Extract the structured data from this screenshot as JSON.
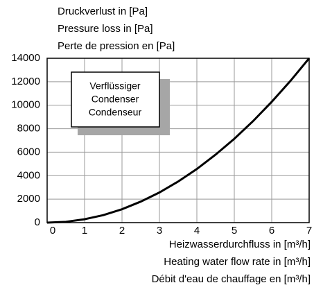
{
  "chart_data": {
    "type": "line",
    "ylabel": [
      "Druckverlust in [Pa]",
      "Pressure loss in [Pa]",
      "Perte de pression en [Pa]"
    ],
    "xlabel": [
      "Heizwasserdurchfluss in [m³/h]",
      "Heating water flow rate in [m³/h]",
      "Débit d'eau de chauffage en [m³/h]"
    ],
    "x": [
      0,
      0.5,
      1,
      1.5,
      2,
      2.5,
      3,
      3.5,
      4,
      4.5,
      5,
      5.5,
      6,
      6.5,
      7
    ],
    "series": [
      {
        "name": [
          "Verflüssiger",
          "Condenser",
          "Condenseur"
        ],
        "color": "#000000",
        "values": [
          0,
          70,
          290,
          640,
          1140,
          1790,
          2570,
          3500,
          4570,
          5790,
          7140,
          8640,
          10290,
          12070,
          14000
        ]
      }
    ],
    "xlim": [
      0,
      7
    ],
    "xticks": [
      0,
      1,
      2,
      3,
      4,
      5,
      6,
      7
    ],
    "ylim": [
      0,
      14000
    ],
    "yticks": [
      0,
      2000,
      4000,
      6000,
      8000,
      10000,
      12000,
      14000
    ],
    "grid": true,
    "legend": "upper left"
  }
}
